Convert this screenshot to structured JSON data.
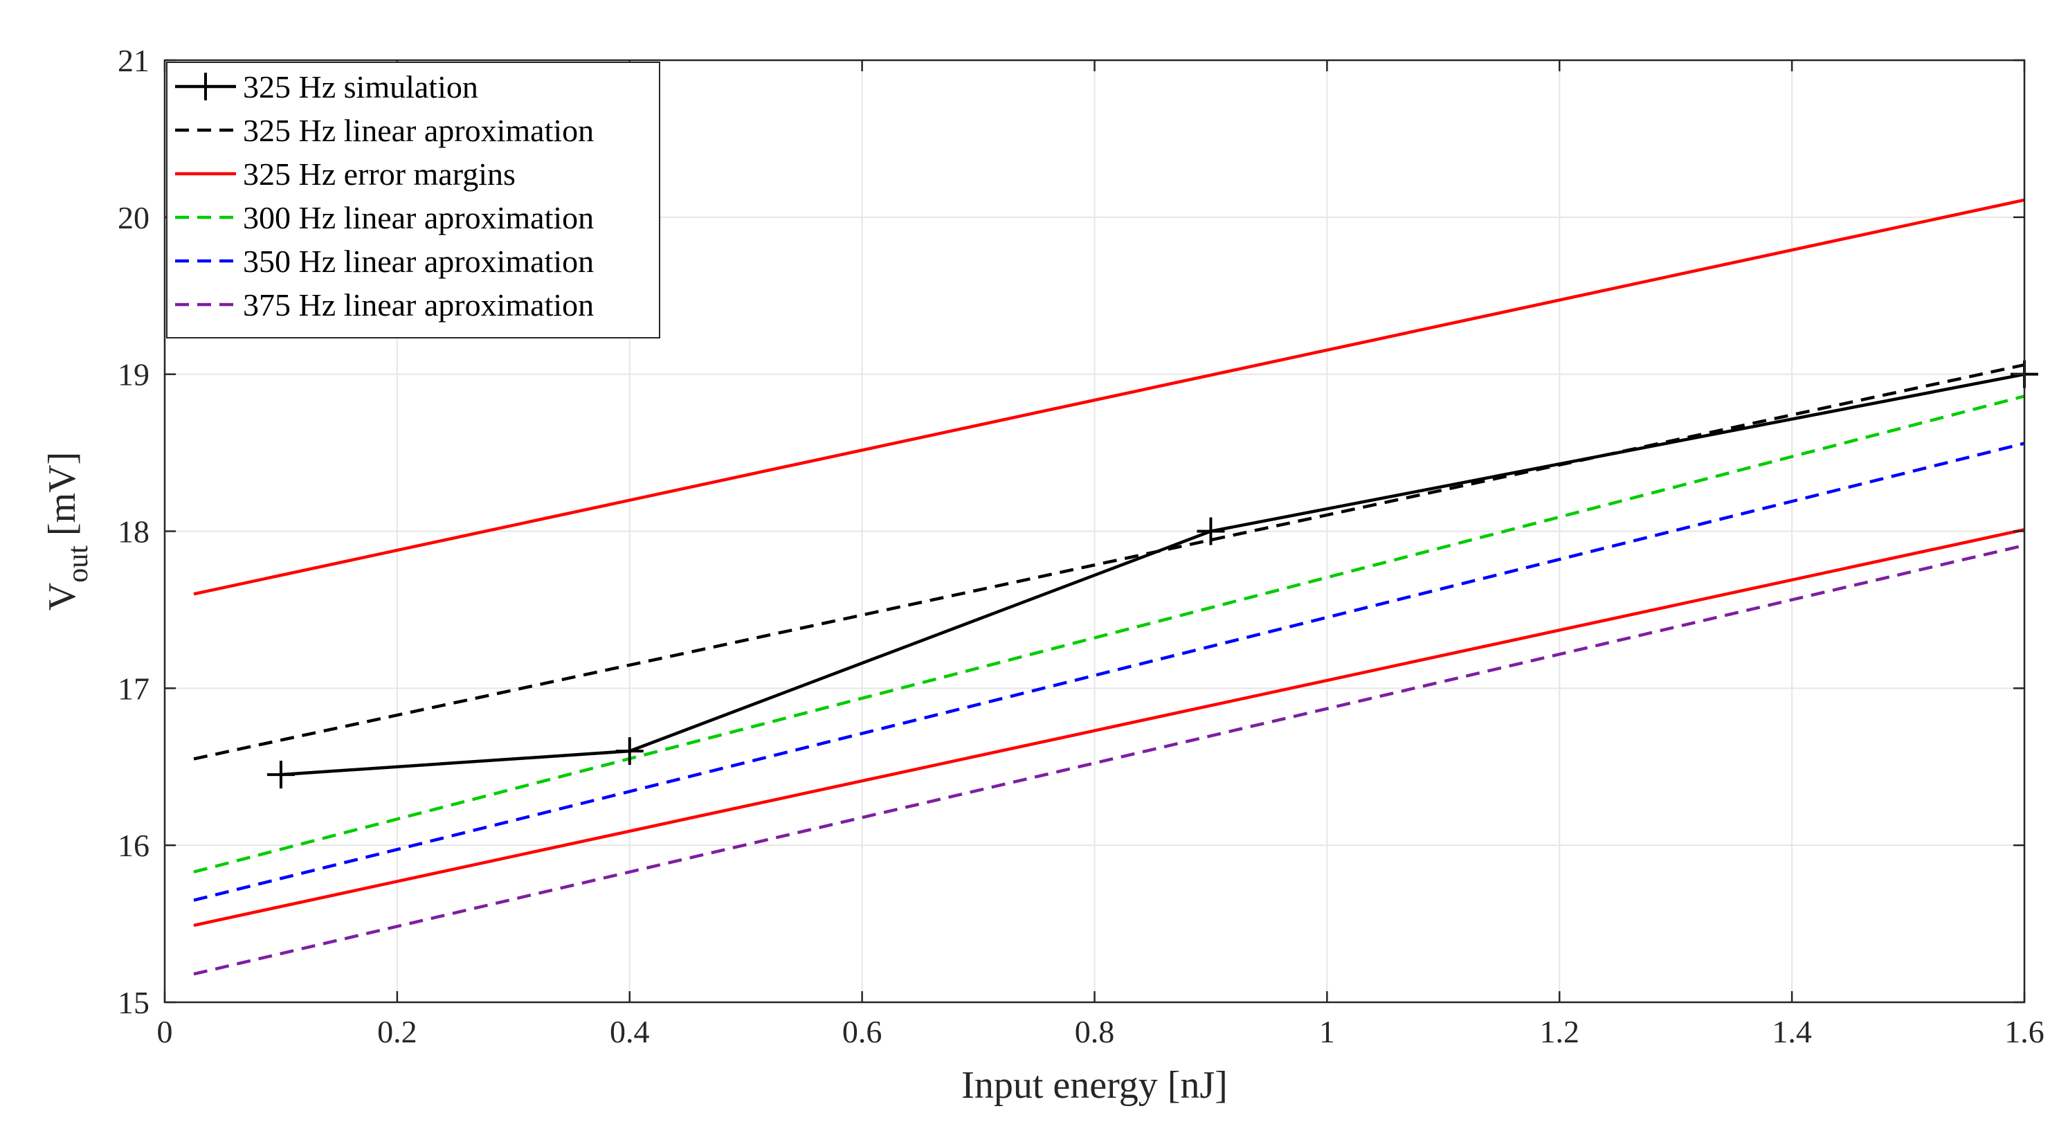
{
  "chart_data": {
    "type": "line",
    "title": "",
    "xlabel": "Input energy [nJ]",
    "ylabel": {
      "main": "V",
      "sub": "out",
      "rest": " [mV]"
    },
    "xlim": [
      0,
      1.6
    ],
    "ylim": [
      15,
      21
    ],
    "xticks": [
      0,
      0.2,
      0.4,
      0.6,
      0.8,
      1,
      1.2,
      1.4,
      1.6
    ],
    "xtick_labels": [
      "0",
      "0.2",
      "0.4",
      "0.6",
      "0.8",
      "1",
      "1.2",
      "1.4",
      "1.6"
    ],
    "yticks": [
      15,
      16,
      17,
      18,
      19,
      20,
      21
    ],
    "ytick_labels": [
      "15",
      "16",
      "17",
      "18",
      "19",
      "20",
      "21"
    ],
    "grid": true,
    "legend_position": "top-left",
    "series": [
      {
        "name": "325 Hz simulation",
        "color": "#000000",
        "dash": "solid",
        "marker": "plus",
        "x": [
          0.1,
          0.4,
          0.9,
          1.6
        ],
        "y": [
          16.45,
          16.6,
          18.0,
          19.0
        ]
      },
      {
        "name": "325 Hz linear aproximation",
        "color": "#000000",
        "dash": "dashed",
        "marker": "none",
        "x": [
          0.025,
          1.6
        ],
        "y": [
          16.55,
          19.06
        ]
      },
      {
        "name": "325 Hz error margins",
        "color": "#ff0000",
        "dash": "solid",
        "marker": "none",
        "x": [
          0.025,
          1.6
        ],
        "y": [
          17.6,
          20.11
        ]
      },
      {
        "name": "",
        "color": "#ff0000",
        "dash": "solid",
        "marker": "none",
        "legend": false,
        "x": [
          0.025,
          1.6
        ],
        "y": [
          15.49,
          18.01
        ]
      },
      {
        "name": "300 Hz linear aproximation",
        "color": "#00cc00",
        "dash": "dashed",
        "marker": "none",
        "x": [
          0.025,
          1.6
        ],
        "y": [
          15.83,
          18.86
        ]
      },
      {
        "name": "350 Hz linear aproximation",
        "color": "#0000ff",
        "dash": "dashed",
        "marker": "none",
        "x": [
          0.025,
          1.6
        ],
        "y": [
          15.65,
          18.56
        ]
      },
      {
        "name": "375 Hz linear aproximation",
        "color": "#7e1fa0",
        "dash": "dashed",
        "marker": "none",
        "x": [
          0.025,
          1.6
        ],
        "y": [
          15.18,
          17.91
        ]
      }
    ]
  }
}
